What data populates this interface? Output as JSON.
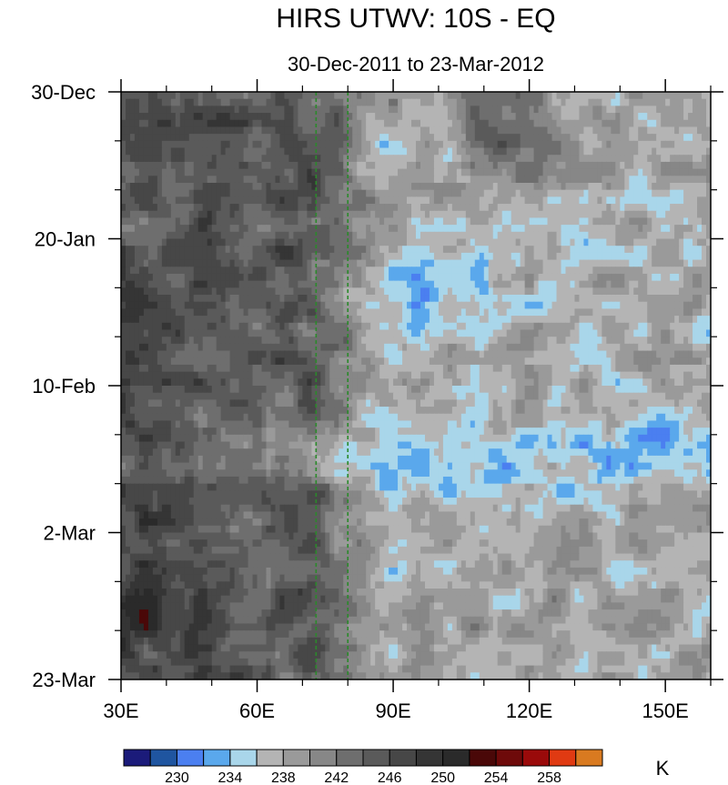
{
  "chart_data": {
    "type": "heatmap",
    "title": "HIRS UTWV: 10S - EQ",
    "subtitle": "30-Dec-2011 to 23-Mar-2012",
    "xlabel": "",
    "ylabel": "",
    "x_range": [
      30,
      160
    ],
    "x_ticks": [
      {
        "value": 30,
        "label": "30E"
      },
      {
        "value": 60,
        "label": "60E"
      },
      {
        "value": 90,
        "label": "90E"
      },
      {
        "value": 120,
        "label": "120E"
      },
      {
        "value": 150,
        "label": "150E"
      }
    ],
    "y_range": [
      "2011-12-30",
      "2012-03-23"
    ],
    "y_ticks": [
      {
        "value": "2011-12-30",
        "label": "30-Dec"
      },
      {
        "value": "2012-01-20",
        "label": "20-Jan"
      },
      {
        "value": "2012-02-10",
        "label": "10-Feb"
      },
      {
        "value": "2012-03-02",
        "label": "2-Mar"
      },
      {
        "value": "2012-03-23",
        "label": "23-Mar"
      }
    ],
    "reference_lines_lon": [
      73,
      80
    ],
    "reference_line_color": "#2a8a2a",
    "colorbar": {
      "unit": "K",
      "levels": [
        228,
        230,
        232,
        234,
        236,
        238,
        240,
        242,
        244,
        246,
        248,
        250,
        252,
        254,
        256,
        258
      ],
      "labels": [
        "230",
        "234",
        "238",
        "242",
        "246",
        "250",
        "254",
        "258"
      ],
      "colors": [
        "#1b1b7a",
        "#1f55a0",
        "#4b7ff0",
        "#5aa8ec",
        "#a9d6ea",
        "#b4b4b4",
        "#9a9a9a",
        "#878787",
        "#6e6e6e",
        "#5a5a5a",
        "#474747",
        "#353535",
        "#2a2a2a",
        "#4a0808",
        "#6e0a0a",
        "#9a0a0a",
        "#e03a12",
        "#d97a20"
      ]
    },
    "grid": false
  }
}
